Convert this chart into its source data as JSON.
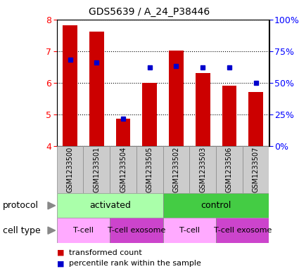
{
  "title": "GDS5639 / A_24_P38446",
  "samples": [
    "GSM1233500",
    "GSM1233501",
    "GSM1233504",
    "GSM1233505",
    "GSM1233502",
    "GSM1233503",
    "GSM1233506",
    "GSM1233507"
  ],
  "transformed_counts": [
    7.82,
    7.62,
    4.88,
    6.0,
    7.02,
    6.3,
    5.92,
    5.72
  ],
  "percentile_ranks": [
    68,
    66,
    22,
    62,
    63,
    62,
    62,
    50
  ],
  "ylim": [
    4,
    8
  ],
  "yticks": [
    4,
    5,
    6,
    7,
    8
  ],
  "right_yticks": [
    0,
    25,
    50,
    75,
    100
  ],
  "right_yticklabels": [
    "0%",
    "25%",
    "50%",
    "75%",
    "100%"
  ],
  "bar_color": "#cc0000",
  "dot_color": "#0000cc",
  "bar_width": 0.55,
  "plot_bg": "#ffffff",
  "protocol_activated_color": "#aaffaa",
  "protocol_control_color": "#44cc44",
  "cell_tcell_color": "#ffaaff",
  "cell_exosome_color": "#cc44cc",
  "sample_box_color": "#cccccc",
  "protocol_groups": [
    {
      "label": "activated",
      "start": 0,
      "end": 4
    },
    {
      "label": "control",
      "start": 4,
      "end": 8
    }
  ],
  "cell_groups": [
    {
      "label": "T-cell",
      "start": 0,
      "end": 2,
      "color": "#ffaaff"
    },
    {
      "label": "T-cell exosome",
      "start": 2,
      "end": 4,
      "color": "#cc44cc"
    },
    {
      "label": "T-cell",
      "start": 4,
      "end": 6,
      "color": "#ffaaff"
    },
    {
      "label": "T-cell exosome",
      "start": 6,
      "end": 8,
      "color": "#cc44cc"
    }
  ],
  "legend_items": [
    {
      "label": "transformed count",
      "color": "#cc0000"
    },
    {
      "label": "percentile rank within the sample",
      "color": "#0000cc"
    }
  ]
}
